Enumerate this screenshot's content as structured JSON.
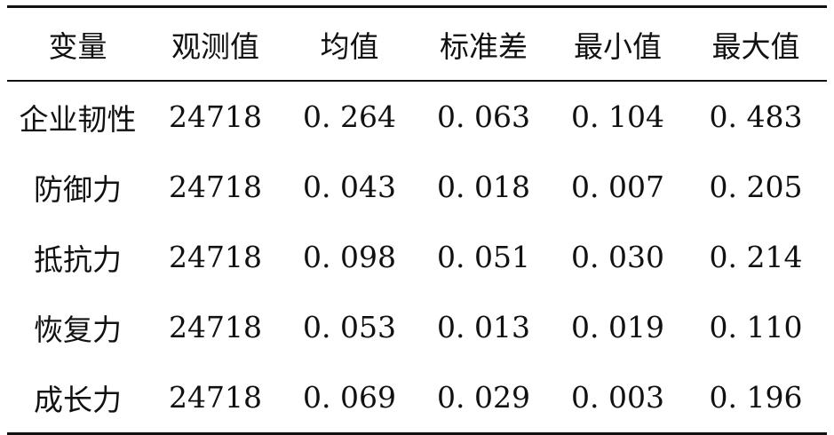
{
  "table": {
    "headers": [
      "变量",
      "观测值",
      "均值",
      "标准差",
      "最小值",
      "最大值"
    ],
    "rows": [
      [
        "企业韧性",
        "24718",
        "0. 264",
        "0. 063",
        "0. 104",
        "0. 483"
      ],
      [
        "防御力",
        "24718",
        "0. 043",
        "0. 018",
        "0. 007",
        "0. 205"
      ],
      [
        "抵抗力",
        "24718",
        "0. 098",
        "0. 051",
        "0. 030",
        "0. 214"
      ],
      [
        "恢复力",
        "24718",
        "0. 053",
        "0. 013",
        "0. 019",
        "0. 110"
      ],
      [
        "成长力",
        "24718",
        "0. 069",
        "0. 029",
        "0. 003",
        "0. 196"
      ]
    ]
  }
}
